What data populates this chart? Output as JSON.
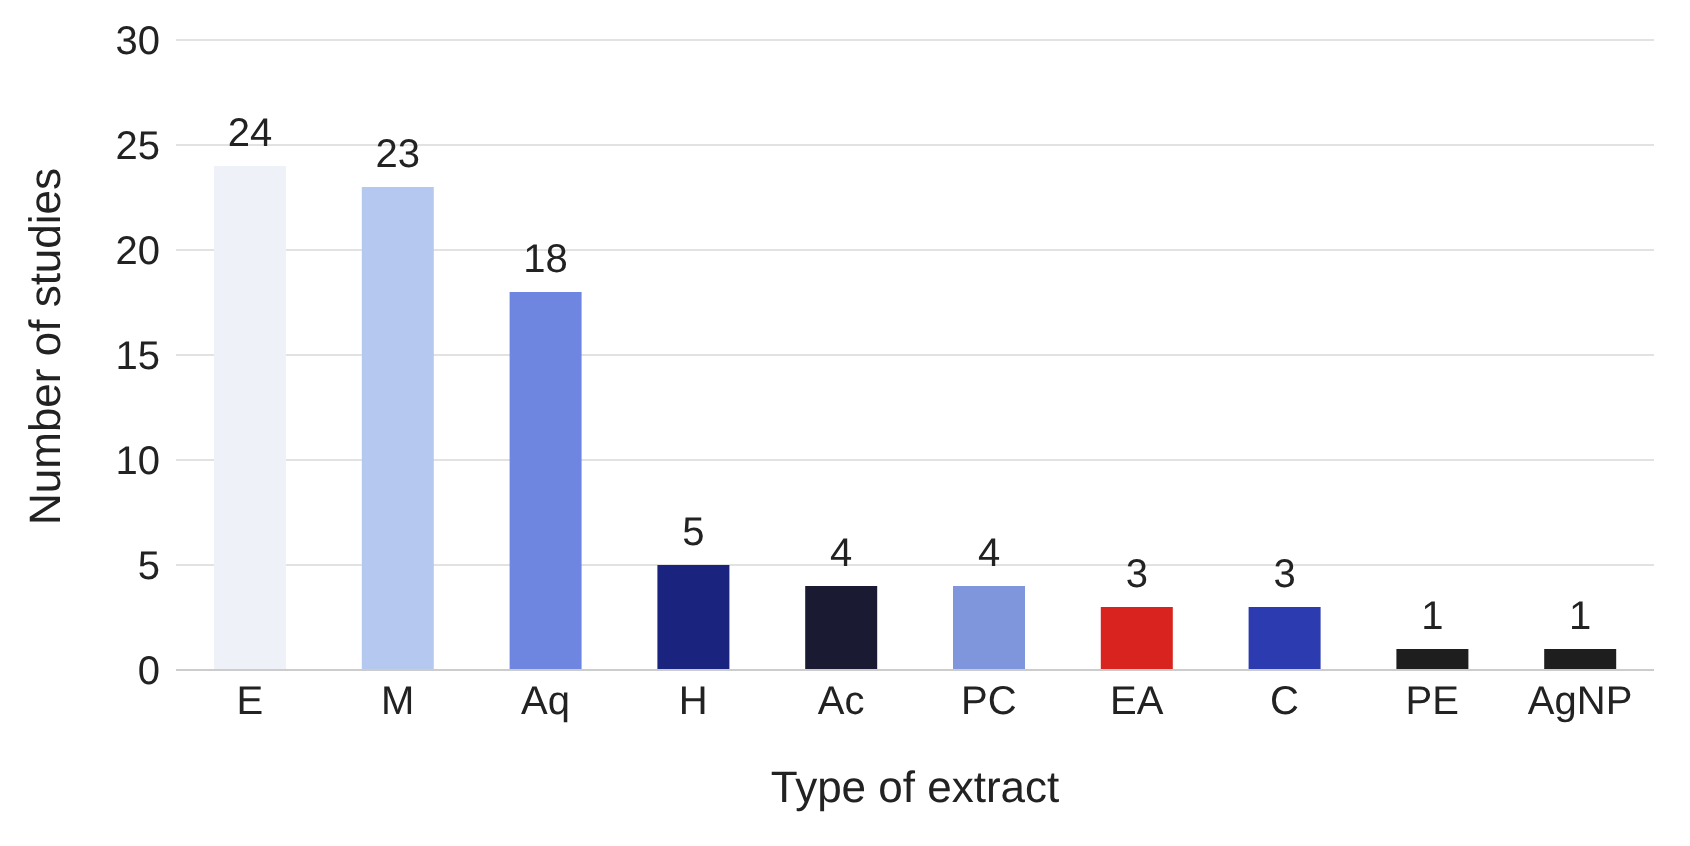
{
  "chart_data": {
    "type": "bar",
    "xlabel": "Type of extract",
    "ylabel": "Number of studies",
    "categories": [
      "E",
      "M",
      "Aq",
      "H",
      "Ac",
      "PC",
      "EA",
      "C",
      "PE",
      "AgNP"
    ],
    "values": [
      24,
      23,
      18,
      5,
      4,
      4,
      3,
      3,
      1,
      1
    ],
    "colors": [
      "#eef1f8",
      "#b5c8f0",
      "#6f86e0",
      "#1a237e",
      "#1a1a33",
      "#7f95dc",
      "#d8231f",
      "#2c3bb0",
      "#1e1e1e",
      "#1e1e1e"
    ],
    "ylim": [
      0,
      30
    ],
    "yticks": [
      0,
      5,
      10,
      15,
      20,
      25,
      30
    ],
    "grid": "y",
    "data_labels": true
  }
}
